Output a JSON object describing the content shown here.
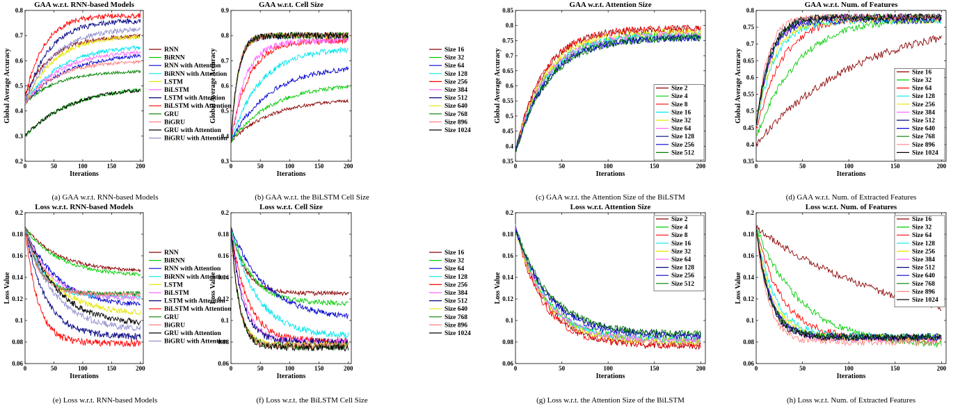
{
  "chart_data": [
    {
      "id": "a",
      "type": "line",
      "title": "GAA w.r.t. RNN-based Models",
      "caption": "(a) GAA w.r.t. RNN-based Models",
      "xlabel": "Iterations",
      "ylabel": "Global Average Accuracy",
      "xlim": [
        0,
        205
      ],
      "ylim": [
        0.2,
        0.8
      ],
      "xticks": [
        0,
        50,
        100,
        150,
        200
      ],
      "yticks": [
        0.2,
        0.3,
        0.4,
        0.5,
        0.6,
        0.7,
        0.8
      ],
      "ytick_labels": [
        "0.2",
        "0.3",
        "0.4",
        "0.5",
        "0.6",
        "0.7",
        "0.8"
      ],
      "legend_position": "outside-right",
      "series": [
        {
          "name": "RNN",
          "color": "#8b0000",
          "start": 0.46,
          "end": 0.7,
          "tau": 45
        },
        {
          "name": "BiRNN",
          "color": "#00cc00",
          "start": 0.3,
          "end": 0.5,
          "tau": 80
        },
        {
          "name": "RNN with Attention",
          "color": "#0000cc",
          "start": 0.43,
          "end": 0.63,
          "tau": 70
        },
        {
          "name": "BiRNN with Attention",
          "color": "#00e5ee",
          "start": 0.43,
          "end": 0.66,
          "tau": 60
        },
        {
          "name": "LSTM",
          "color": "#e6e600",
          "start": 0.43,
          "end": 0.7,
          "tau": 50
        },
        {
          "name": "BiLSTM",
          "color": "#ff66ff",
          "start": 0.43,
          "end": 0.64,
          "tau": 60
        },
        {
          "name": "LSTM with Attention",
          "color": "#000080",
          "start": 0.43,
          "end": 0.76,
          "tau": 40
        },
        {
          "name": "BiLSTM with Attention",
          "color": "#ff0000",
          "start": 0.45,
          "end": 0.78,
          "tau": 32
        },
        {
          "name": "GRU",
          "color": "#008000",
          "start": 0.43,
          "end": 0.56,
          "tau": 55
        },
        {
          "name": "BiGRU",
          "color": "#ff8080",
          "start": 0.43,
          "end": 0.6,
          "tau": 55
        },
        {
          "name": "GRU with Attention",
          "color": "#000000",
          "start": 0.3,
          "end": 0.5,
          "tau": 80
        },
        {
          "name": "BiGRU with Attention",
          "color": "#9090d0",
          "start": 0.43,
          "end": 0.73,
          "tau": 50
        }
      ]
    },
    {
      "id": "b",
      "type": "line",
      "title": "GAA w.r.t. Cell Size",
      "caption": "(b) GAA w.r.t. the BiLSTM Cell Size",
      "xlabel": "Iterations",
      "ylabel": "Global Average Accuracy",
      "xlim": [
        0,
        205
      ],
      "ylim": [
        0.3,
        0.9
      ],
      "xticks": [
        0,
        50,
        100,
        150,
        200
      ],
      "yticks": [
        0.3,
        0.4,
        0.5,
        0.6,
        0.7,
        0.8,
        0.9
      ],
      "ytick_labels": [
        "0.3",
        "0.4",
        "0.5",
        "0.6",
        "0.7",
        "0.8",
        "0.9"
      ],
      "legend_position": "outside-right",
      "series": [
        {
          "name": "Size 16",
          "color": "#8b0000",
          "start": 0.38,
          "end": 0.55,
          "tau": 70
        },
        {
          "name": "Size 32",
          "color": "#00cc00",
          "start": 0.38,
          "end": 0.61,
          "tau": 70
        },
        {
          "name": "Size 64",
          "color": "#0000cc",
          "start": 0.38,
          "end": 0.68,
          "tau": 65
        },
        {
          "name": "Size 128",
          "color": "#00e5ee",
          "start": 0.38,
          "end": 0.75,
          "tau": 50
        },
        {
          "name": "Size 256",
          "color": "#ff0000",
          "start": 0.38,
          "end": 0.78,
          "tau": 30
        },
        {
          "name": "Size 384",
          "color": "#ff66ff",
          "start": 0.38,
          "end": 0.78,
          "tau": 25
        },
        {
          "name": "Size 512",
          "color": "#000080",
          "start": 0.38,
          "end": 0.8,
          "tau": 12
        },
        {
          "name": "Size 640",
          "color": "#e6e600",
          "start": 0.38,
          "end": 0.8,
          "tau": 12
        },
        {
          "name": "Size 768",
          "color": "#008000",
          "start": 0.38,
          "end": 0.8,
          "tau": 12
        },
        {
          "name": "Size 896",
          "color": "#ff8080",
          "start": 0.38,
          "end": 0.8,
          "tau": 12
        },
        {
          "name": "Size 1024",
          "color": "#000000",
          "start": 0.38,
          "end": 0.8,
          "tau": 12
        }
      ]
    },
    {
      "id": "c",
      "type": "line",
      "title": "GAA w.r.t. Attention Size",
      "caption": "(c) GAA w.r.t. the Attention Size of the BiLSTM",
      "xlabel": "Iterations",
      "ylabel": "Global Average Accuracy",
      "xlim": [
        0,
        205
      ],
      "ylim": [
        0.35,
        0.85
      ],
      "xticks": [
        0,
        50,
        100,
        150,
        200
      ],
      "yticks": [
        0.35,
        0.4,
        0.45,
        0.5,
        0.55,
        0.6,
        0.65,
        0.7,
        0.75,
        0.8,
        0.85
      ],
      "ytick_labels": [
        "0.35",
        "0.4",
        "0.45",
        "0.5",
        "0.55",
        "0.6",
        "0.65",
        "0.7",
        "0.75",
        "0.8",
        "0.85"
      ],
      "legend_position": "inside-bottom-right",
      "series": [
        {
          "name": "Size 2",
          "color": "#8b0000",
          "start": 0.38,
          "end": 0.79,
          "tau": 30
        },
        {
          "name": "Size 4",
          "color": "#00cc00",
          "start": 0.38,
          "end": 0.77,
          "tau": 33
        },
        {
          "name": "Size 8",
          "color": "#ff0000",
          "start": 0.38,
          "end": 0.79,
          "tau": 30
        },
        {
          "name": "Size 16",
          "color": "#00e5ee",
          "start": 0.38,
          "end": 0.77,
          "tau": 33
        },
        {
          "name": "Size 32",
          "color": "#e6e600",
          "start": 0.38,
          "end": 0.78,
          "tau": 32
        },
        {
          "name": "Size 64",
          "color": "#ff66ff",
          "start": 0.38,
          "end": 0.77,
          "tau": 33
        },
        {
          "name": "Size 128",
          "color": "#000080",
          "start": 0.38,
          "end": 0.76,
          "tau": 35
        },
        {
          "name": "Size 256",
          "color": "#0000cc",
          "start": 0.38,
          "end": 0.76,
          "tau": 35
        },
        {
          "name": "Size 512",
          "color": "#008000",
          "start": 0.38,
          "end": 0.76,
          "tau": 36
        }
      ]
    },
    {
      "id": "d",
      "type": "line",
      "title": "GAA w.r.t. Num. of Features",
      "caption": "(d) GAA w.r.t. Num. of Extracted Features",
      "xlabel": "Iterations",
      "ylabel": "Global Average Accuracy",
      "xlim": [
        0,
        205
      ],
      "ylim": [
        0.35,
        0.8
      ],
      "xticks": [
        0,
        50,
        100,
        150,
        200
      ],
      "yticks": [
        0.35,
        0.4,
        0.45,
        0.5,
        0.55,
        0.6,
        0.65,
        0.7,
        0.75,
        0.8
      ],
      "ytick_labels": [
        "0.35",
        "0.4",
        "0.45",
        "0.5",
        "0.55",
        "0.6",
        "0.65",
        "0.7",
        "0.75",
        "0.8"
      ],
      "legend_position": "inside-bottom-right",
      "series": [
        {
          "name": "Size 16",
          "color": "#8b0000",
          "start": 0.4,
          "end": 0.78,
          "tau": 110
        },
        {
          "name": "Size 32",
          "color": "#00cc00",
          "start": 0.42,
          "end": 0.78,
          "tau": 45
        },
        {
          "name": "Size 64",
          "color": "#ff0000",
          "start": 0.44,
          "end": 0.78,
          "tau": 28
        },
        {
          "name": "Size 128",
          "color": "#00e5ee",
          "start": 0.45,
          "end": 0.77,
          "tau": 20
        },
        {
          "name": "Size 256",
          "color": "#e6e600",
          "start": 0.45,
          "end": 0.77,
          "tau": 18
        },
        {
          "name": "Size 384",
          "color": "#ff66ff",
          "start": 0.45,
          "end": 0.78,
          "tau": 16
        },
        {
          "name": "Size 512",
          "color": "#000080",
          "start": 0.45,
          "end": 0.78,
          "tau": 15
        },
        {
          "name": "Size 640",
          "color": "#0000cc",
          "start": 0.45,
          "end": 0.77,
          "tau": 15
        },
        {
          "name": "Size 768",
          "color": "#008000",
          "start": 0.45,
          "end": 0.78,
          "tau": 15
        },
        {
          "name": "Size 896",
          "color": "#ff8080",
          "start": 0.45,
          "end": 0.78,
          "tau": 12
        },
        {
          "name": "Size 1024",
          "color": "#000000",
          "start": 0.45,
          "end": 0.78,
          "tau": 14
        }
      ]
    },
    {
      "id": "e",
      "type": "line",
      "title": "Loss w.r.t. RNN-based Models",
      "caption": "(e) Loss w.r.t. RNN-based Models",
      "xlabel": "Iterations",
      "ylabel": "Loss Value",
      "xlim": [
        0,
        205
      ],
      "ylim": [
        0.06,
        0.2
      ],
      "xticks": [
        0,
        50,
        100,
        150,
        200
      ],
      "yticks": [
        0.06,
        0.08,
        0.1,
        0.12,
        0.14,
        0.16,
        0.18,
        0.2
      ],
      "ytick_labels": [
        "0.06",
        "0.08",
        "0.1",
        "0.12",
        "0.14",
        "0.16",
        "0.18",
        "0.2"
      ],
      "legend_position": "outside-right",
      "series": [
        {
          "name": "RNN",
          "color": "#8b0000",
          "start": 0.186,
          "end": 0.145,
          "tau": 60
        },
        {
          "name": "BiRNN",
          "color": "#00cc00",
          "start": 0.186,
          "end": 0.141,
          "tau": 60
        },
        {
          "name": "RNN with Attention",
          "color": "#0000cc",
          "start": 0.186,
          "end": 0.113,
          "tau": 55
        },
        {
          "name": "BiRNN with Attention",
          "color": "#00e5ee",
          "start": 0.186,
          "end": 0.122,
          "tau": 30
        },
        {
          "name": "LSTM",
          "color": "#e6e600",
          "start": 0.186,
          "end": 0.106,
          "tau": 50
        },
        {
          "name": "BiLSTM",
          "color": "#ff66ff",
          "start": 0.186,
          "end": 0.12,
          "tau": 40
        },
        {
          "name": "LSTM with Attention",
          "color": "#000080",
          "start": 0.186,
          "end": 0.085,
          "tau": 35
        },
        {
          "name": "BiLSTM with Attention",
          "color": "#ff0000",
          "start": 0.186,
          "end": 0.079,
          "tau": 22
        },
        {
          "name": "GRU",
          "color": "#008000",
          "start": 0.186,
          "end": 0.125,
          "tau": 25
        },
        {
          "name": "BiGRU",
          "color": "#ff8080",
          "start": 0.186,
          "end": 0.124,
          "tau": 25
        },
        {
          "name": "GRU with Attention",
          "color": "#000000",
          "start": 0.186,
          "end": 0.096,
          "tau": 55
        },
        {
          "name": "BiGRU with Attention",
          "color": "#9090d0",
          "start": 0.186,
          "end": 0.091,
          "tau": 50
        }
      ]
    },
    {
      "id": "f",
      "type": "line",
      "title": "Loss w.r.t. Cell Size",
      "caption": "(f) Loss w.r.t. the BiLSTM Cell Size",
      "xlabel": "Iterations",
      "ylabel": "Loss Value",
      "xlim": [
        0,
        205
      ],
      "ylim": [
        0.06,
        0.2
      ],
      "xticks": [
        0,
        50,
        100,
        150,
        200
      ],
      "yticks": [
        0.06,
        0.08,
        0.1,
        0.12,
        0.14,
        0.16,
        0.18,
        0.2
      ],
      "ytick_labels": [
        "0.06",
        "0.08",
        "0.1",
        "0.12",
        "0.14",
        "0.16",
        "0.18",
        "0.2"
      ],
      "legend_position": "outside-right",
      "series": [
        {
          "name": "Size 16",
          "color": "#8b0000",
          "start": 0.186,
          "end": 0.125,
          "tau": 25
        },
        {
          "name": "Size 32",
          "color": "#00cc00",
          "start": 0.186,
          "end": 0.116,
          "tau": 35
        },
        {
          "name": "Size 64",
          "color": "#0000cc",
          "start": 0.186,
          "end": 0.101,
          "tau": 60
        },
        {
          "name": "Size 128",
          "color": "#00e5ee",
          "start": 0.186,
          "end": 0.085,
          "tau": 45
        },
        {
          "name": "Size 256",
          "color": "#ff0000",
          "start": 0.186,
          "end": 0.081,
          "tau": 28
        },
        {
          "name": "Size 384",
          "color": "#ff66ff",
          "start": 0.186,
          "end": 0.08,
          "tau": 22
        },
        {
          "name": "Size 512",
          "color": "#000080",
          "start": 0.186,
          "end": 0.08,
          "tau": 20
        },
        {
          "name": "Size 640",
          "color": "#e6e600",
          "start": 0.186,
          "end": 0.077,
          "tau": 14
        },
        {
          "name": "Size 768",
          "color": "#008000",
          "start": 0.186,
          "end": 0.076,
          "tau": 14
        },
        {
          "name": "Size 896",
          "color": "#ff8080",
          "start": 0.186,
          "end": 0.076,
          "tau": 14
        },
        {
          "name": "Size 1024",
          "color": "#000000",
          "start": 0.186,
          "end": 0.075,
          "tau": 14
        }
      ]
    },
    {
      "id": "g",
      "type": "line",
      "title": "Loss w.r.t. Attention Size",
      "caption": "(g) Loss w.r.t. the Attention Size of the BiLSTM",
      "xlabel": "Iterations",
      "ylabel": "Loss Value",
      "xlim": [
        0,
        205
      ],
      "ylim": [
        0.06,
        0.2
      ],
      "xticks": [
        0,
        50,
        100,
        150,
        200
      ],
      "yticks": [
        0.06,
        0.08,
        0.1,
        0.12,
        0.14,
        0.16,
        0.18,
        0.2
      ],
      "ytick_labels": [
        "0.06",
        "0.08",
        "0.1",
        "0.12",
        "0.14",
        "0.16",
        "0.18",
        "0.2"
      ],
      "legend_position": "inside-top-right",
      "series": [
        {
          "name": "Size 2",
          "color": "#8b0000",
          "start": 0.186,
          "end": 0.076,
          "tau": 33
        },
        {
          "name": "Size 4",
          "color": "#00cc00",
          "start": 0.186,
          "end": 0.082,
          "tau": 33
        },
        {
          "name": "Size 8",
          "color": "#ff0000",
          "start": 0.186,
          "end": 0.077,
          "tau": 30
        },
        {
          "name": "Size 16",
          "color": "#00e5ee",
          "start": 0.186,
          "end": 0.081,
          "tau": 33
        },
        {
          "name": "Size 32",
          "color": "#e6e600",
          "start": 0.186,
          "end": 0.08,
          "tau": 32
        },
        {
          "name": "Size 64",
          "color": "#ff66ff",
          "start": 0.186,
          "end": 0.081,
          "tau": 33
        },
        {
          "name": "Size 128",
          "color": "#000080",
          "start": 0.186,
          "end": 0.087,
          "tau": 36
        },
        {
          "name": "Size 256",
          "color": "#0000cc",
          "start": 0.186,
          "end": 0.085,
          "tau": 36
        },
        {
          "name": "Size 512",
          "color": "#008000",
          "start": 0.186,
          "end": 0.087,
          "tau": 38
        }
      ]
    },
    {
      "id": "h",
      "type": "line",
      "title": "Loss w.r.t. Num. of Features",
      "caption": "(h) Loss w.r.t. Num. of Extracted Features",
      "xlabel": "Iterations",
      "ylabel": "Loss Value",
      "xlim": [
        0,
        205
      ],
      "ylim": [
        0.06,
        0.2
      ],
      "xticks": [
        0,
        50,
        100,
        150,
        200
      ],
      "yticks": [
        0.06,
        0.08,
        0.1,
        0.12,
        0.14,
        0.16,
        0.18,
        0.2
      ],
      "ytick_labels": [
        "0.06",
        "0.08",
        "0.1",
        "0.12",
        "0.14",
        "0.16",
        "0.18",
        "0.2"
      ],
      "legend_position": "inside-top-right",
      "series": [
        {
          "name": "Size 16",
          "color": "#8b0000",
          "start": 0.186,
          "end": 0.082,
          "tau": 160
        },
        {
          "name": "Size 32",
          "color": "#00cc00",
          "start": 0.186,
          "end": 0.076,
          "tau": 50
        },
        {
          "name": "Size 64",
          "color": "#ff0000",
          "start": 0.186,
          "end": 0.083,
          "tau": 28
        },
        {
          "name": "Size 128",
          "color": "#00e5ee",
          "start": 0.186,
          "end": 0.085,
          "tau": 20
        },
        {
          "name": "Size 256",
          "color": "#e6e600",
          "start": 0.186,
          "end": 0.084,
          "tau": 18
        },
        {
          "name": "Size 384",
          "color": "#ff66ff",
          "start": 0.186,
          "end": 0.083,
          "tau": 16
        },
        {
          "name": "Size 512",
          "color": "#000080",
          "start": 0.186,
          "end": 0.085,
          "tau": 15
        },
        {
          "name": "Size 640",
          "color": "#0000cc",
          "start": 0.186,
          "end": 0.084,
          "tau": 15
        },
        {
          "name": "Size 768",
          "color": "#008000",
          "start": 0.186,
          "end": 0.085,
          "tau": 15
        },
        {
          "name": "Size 896",
          "color": "#ff8080",
          "start": 0.186,
          "end": 0.08,
          "tau": 13
        },
        {
          "name": "Size 1024",
          "color": "#000000",
          "start": 0.186,
          "end": 0.084,
          "tau": 14
        }
      ]
    }
  ]
}
